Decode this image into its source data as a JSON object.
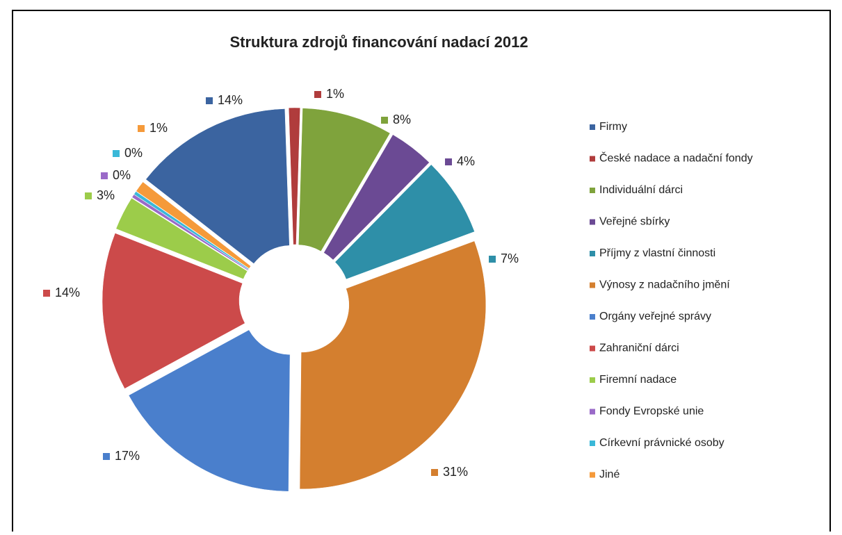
{
  "chart_data": {
    "type": "doughnut",
    "title": "Struktura zdrojů financování nadací 2012",
    "categories": [
      "Firmy",
      "České nadace a nadační fondy",
      "Individuální dárci",
      "Veřejné sbírky",
      "Příjmy z vlastní činnosti",
      "Výnosy z nadačního jmění",
      "Orgány veřejné správy",
      "Zahraniční dárci",
      "Firemní nadace",
      "Fondy Evropské unie",
      "Církevní právnické osoby",
      "Jiné"
    ],
    "values": [
      14,
      1,
      8,
      4,
      7,
      31,
      17,
      14,
      3,
      0.3,
      0.3,
      1
    ],
    "value_labels": [
      "14%",
      "1%",
      "8%",
      "4%",
      "7%",
      "31%",
      "17%",
      "14%",
      "3%",
      "0%",
      "0%",
      "1%"
    ],
    "colors": [
      "#3b64a0",
      "#b03c3c",
      "#7fa33c",
      "#6b4a94",
      "#2e8fa8",
      "#d47f2f",
      "#4a7fcc",
      "#cc4a4a",
      "#9ccc4a",
      "#9a6ac8",
      "#3ab8d8",
      "#f59a3a"
    ],
    "legend": "right"
  }
}
